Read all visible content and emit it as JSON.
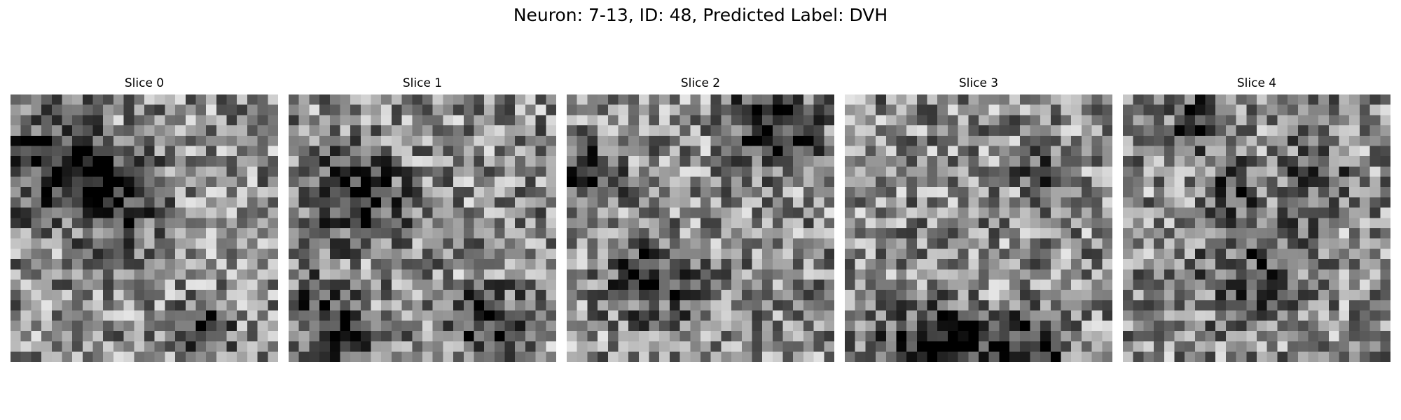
{
  "figure": {
    "title": "Neuron: 7-13, ID: 48, Predicted Label: DVH"
  },
  "panels": [
    {
      "title": "Slice 0"
    },
    {
      "title": "Slice 1"
    },
    {
      "title": "Slice 2"
    },
    {
      "title": "Slice 3"
    },
    {
      "title": "Slice 4"
    }
  ],
  "colormap": "gray"
}
